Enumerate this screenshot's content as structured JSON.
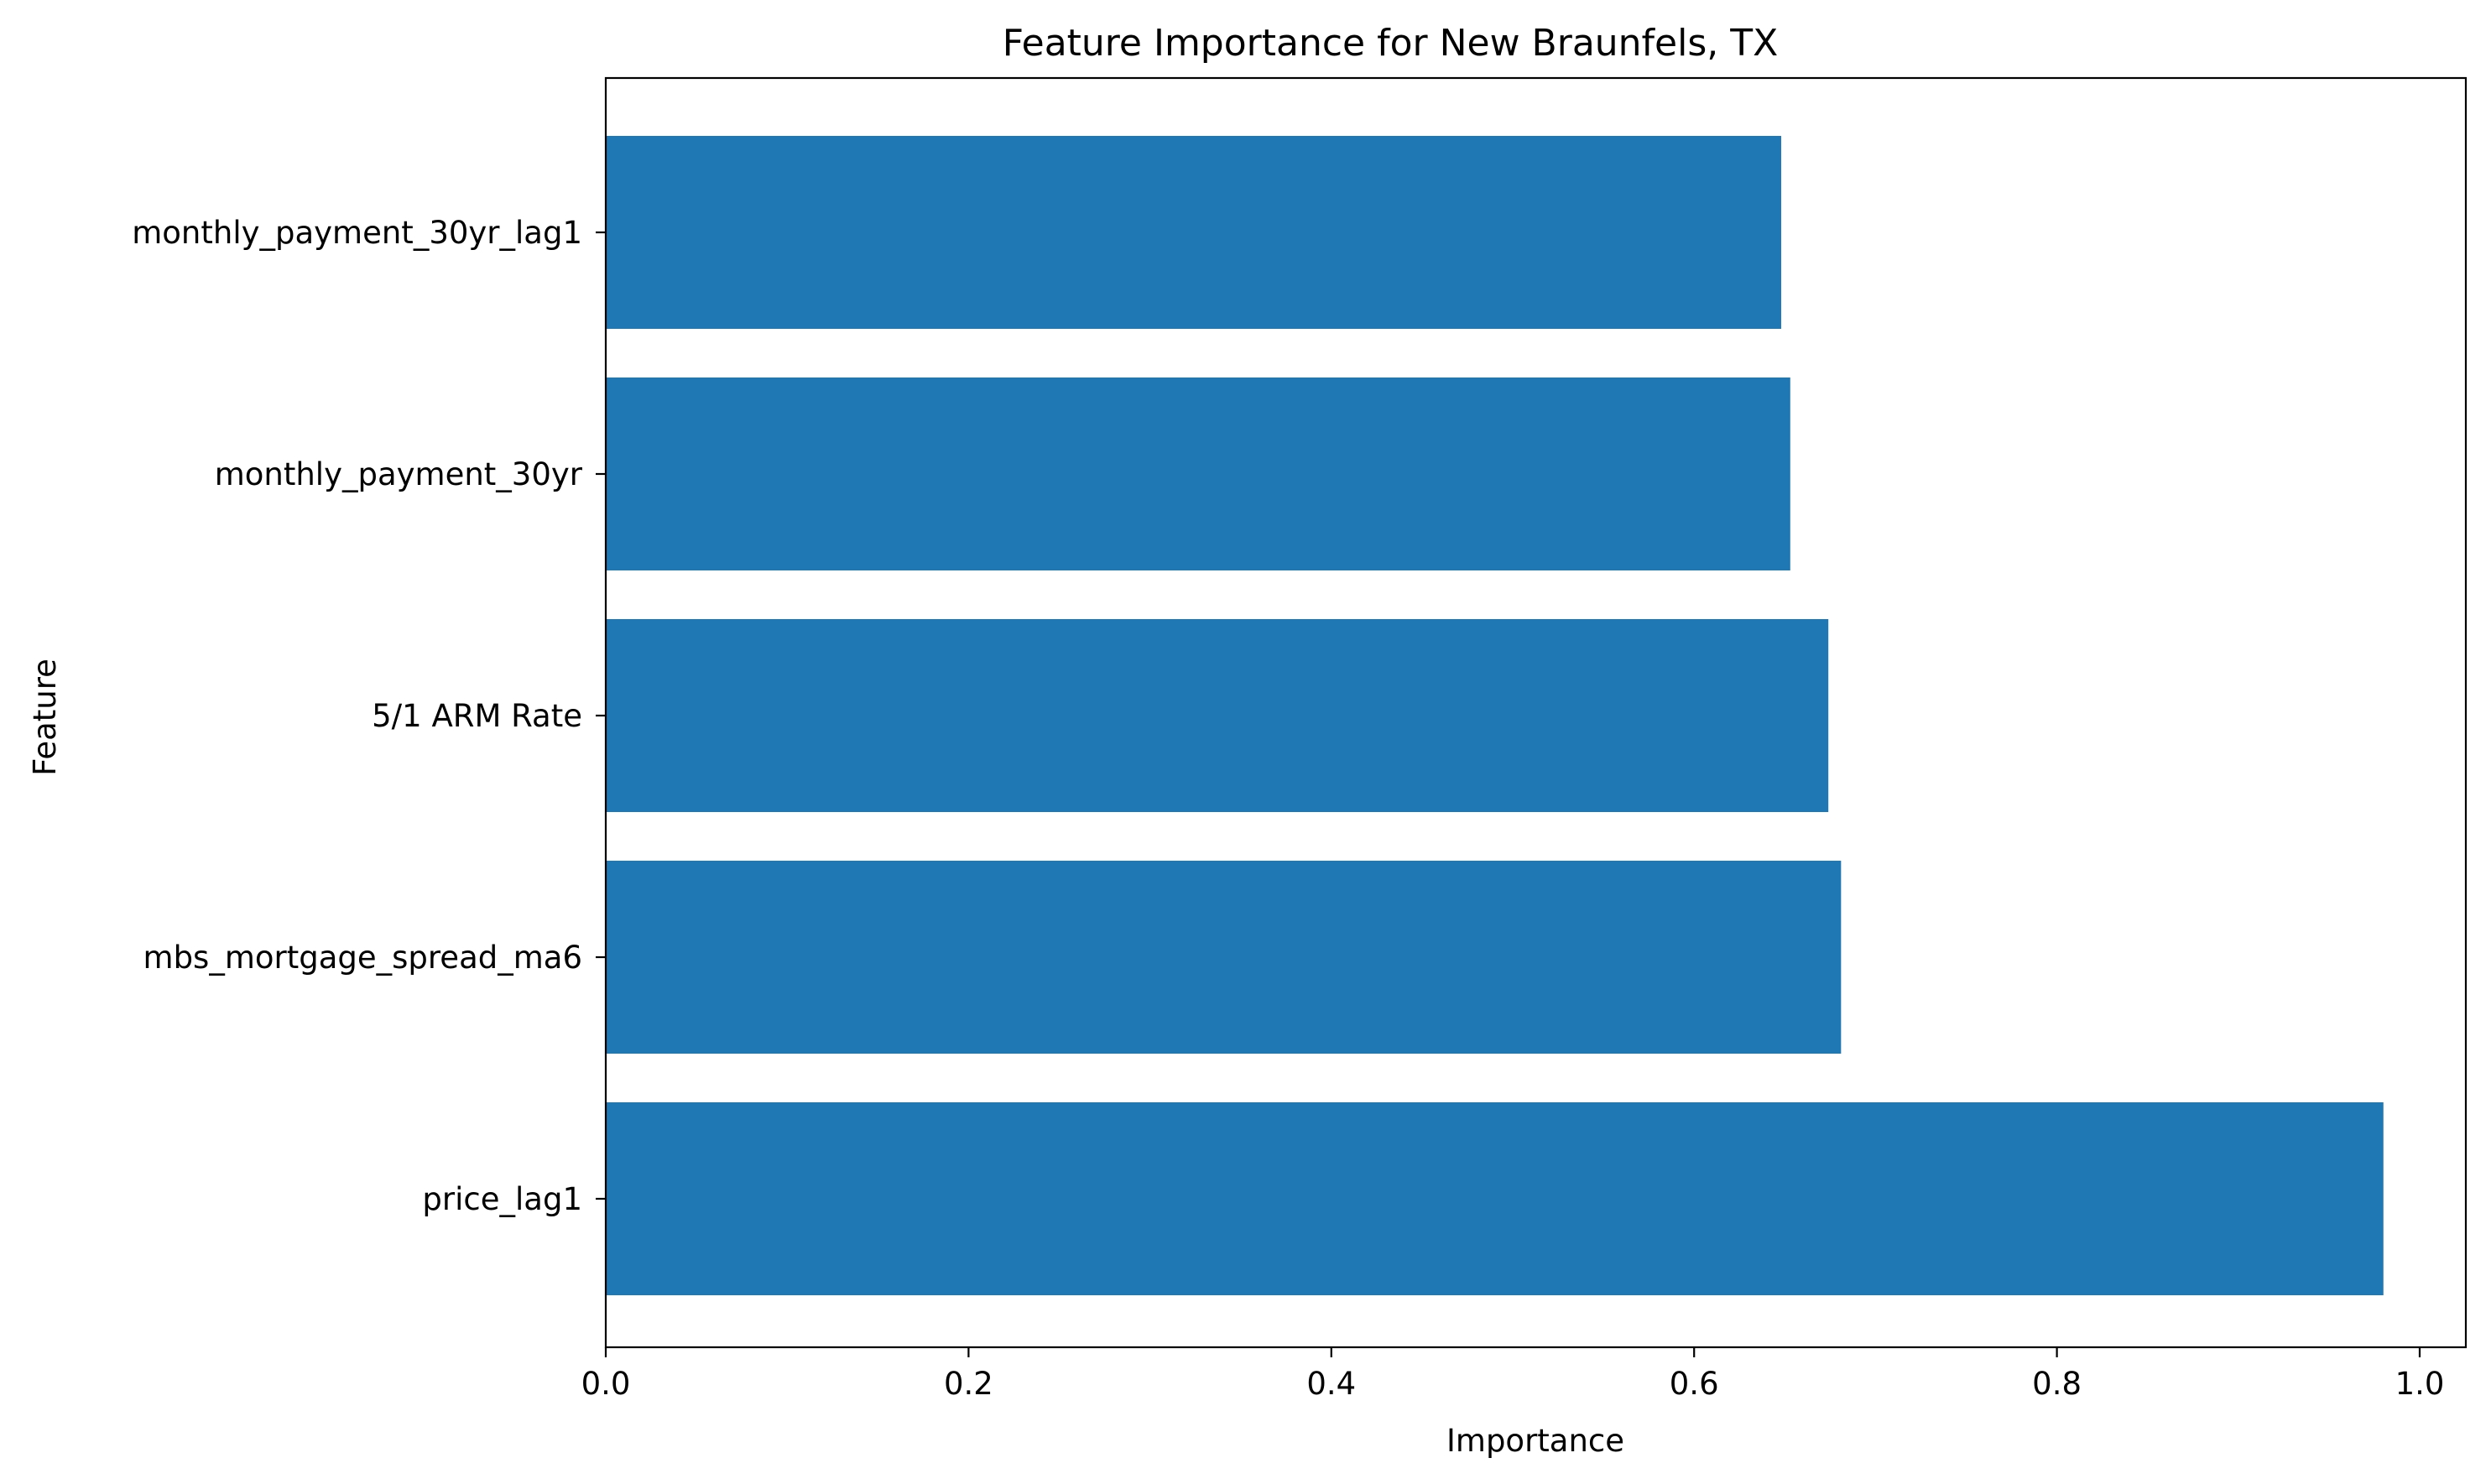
{
  "chart_data": {
    "type": "bar",
    "orientation": "horizontal",
    "title": "Feature Importance for New Braunfels, TX",
    "xlabel": "Importance",
    "ylabel": "Feature",
    "categories": [
      "price_lag1",
      "mbs_mortgage_spread_ma6",
      "5/1 ARM Rate",
      "monthly_payment_30yr",
      "monthly_payment_30yr_lag1"
    ],
    "values": [
      0.98,
      0.681,
      0.674,
      0.653,
      0.648
    ],
    "xlim": [
      0,
      1.03
    ],
    "xticks": [
      "0.0",
      "0.2",
      "0.4",
      "0.6",
      "0.8",
      "1.0"
    ],
    "grid": false,
    "legend": false,
    "bar_color": "#1f77b4",
    "axis_color": "#000000"
  }
}
